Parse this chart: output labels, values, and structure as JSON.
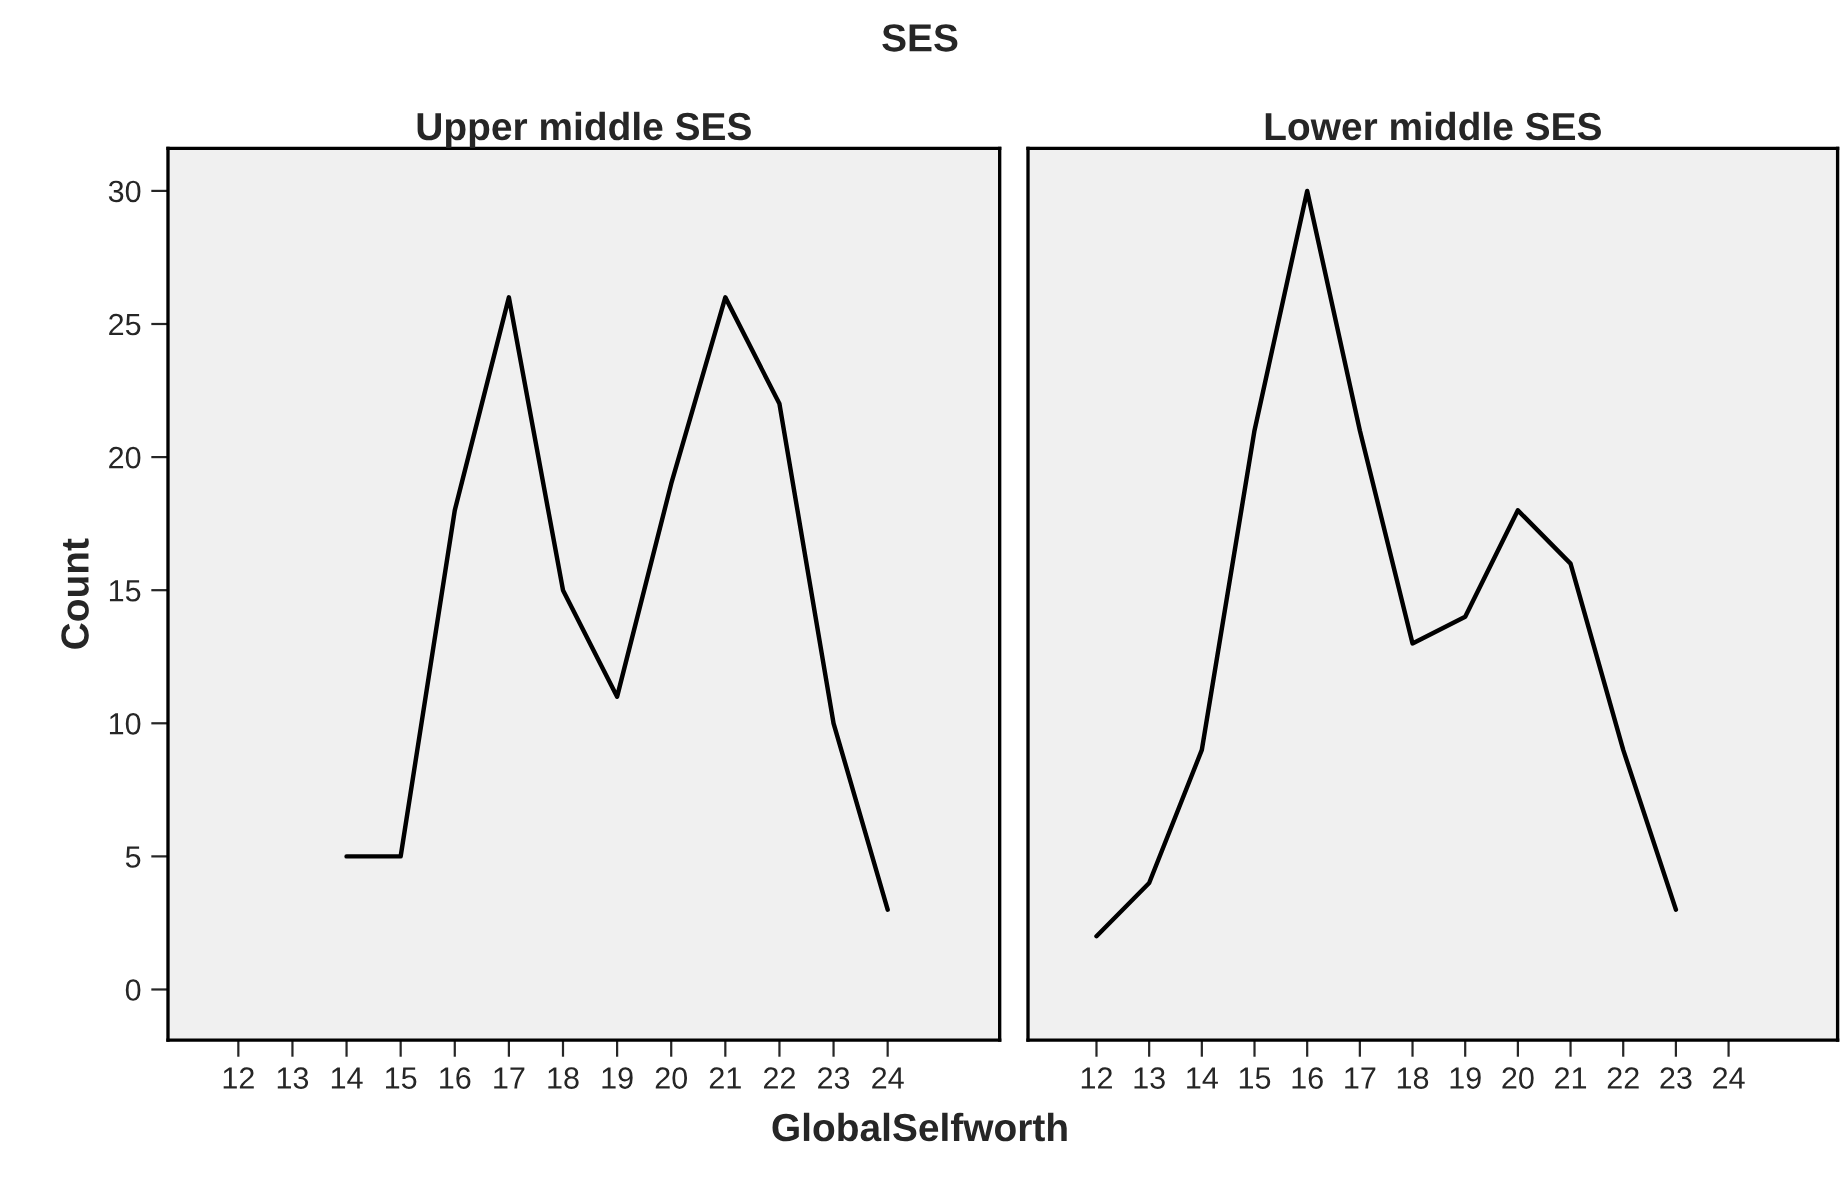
{
  "chart_data": [
    {
      "type": "line",
      "title": "Upper middle SES",
      "xlabel": "GlobalSelfworth",
      "ylabel": "Count",
      "annotations": [
        "SES"
      ],
      "categories": [
        "12",
        "13",
        "14",
        "15",
        "16",
        "17",
        "18",
        "19",
        "20",
        "21",
        "22",
        "23",
        "24"
      ],
      "series": [
        {
          "color": "#000000",
          "values": [
            null,
            null,
            5,
            5,
            18,
            26,
            15,
            11,
            19,
            26,
            22,
            10,
            3
          ]
        }
      ],
      "ylim": [
        -1.9,
        31.6
      ],
      "yticks": [
        0,
        5,
        10,
        15,
        20,
        25,
        30
      ],
      "grid": false
    },
    {
      "type": "line",
      "title": "Lower middle SES",
      "categories": [
        "12",
        "13",
        "14",
        "15",
        "16",
        "17",
        "18",
        "19",
        "20",
        "21",
        "22",
        "23",
        "24"
      ],
      "series": [
        {
          "color": "#000000",
          "values": [
            2,
            4,
            9,
            21,
            30,
            21,
            13,
            14,
            18,
            16,
            9,
            3,
            null
          ]
        }
      ],
      "ylim": [
        -1.9,
        31.6
      ],
      "yticks": [
        0,
        5,
        10,
        15,
        20,
        25,
        30
      ],
      "tick_labels": "x",
      "grid": false
    }
  ]
}
